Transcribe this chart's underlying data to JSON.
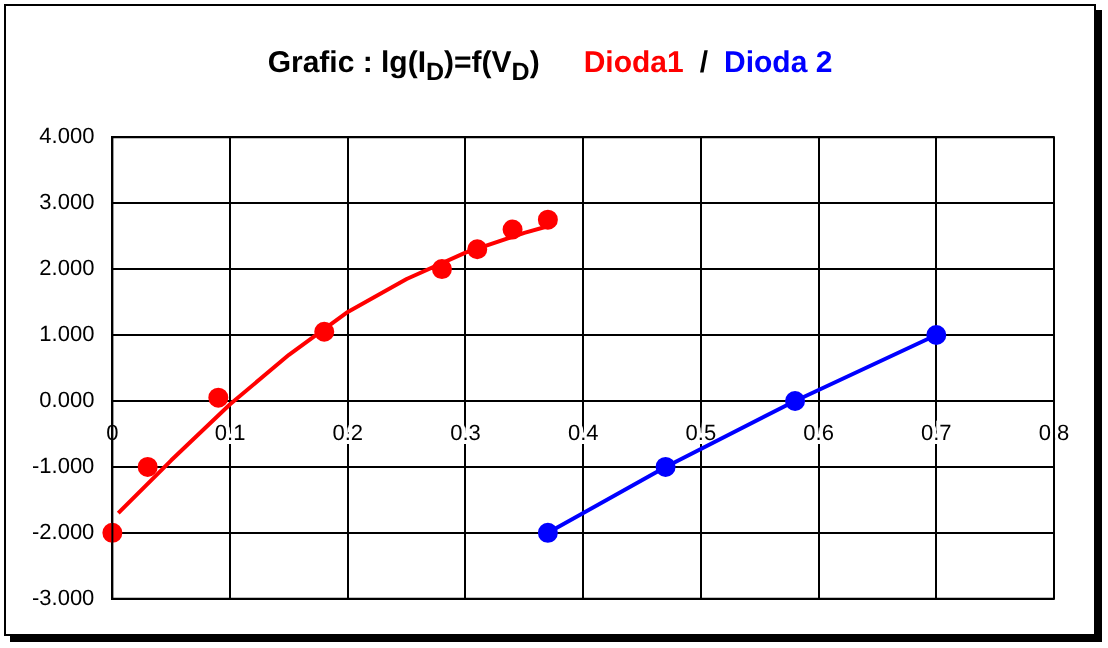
{
  "chart_data": {
    "type": "scatter",
    "title": "Grafic : lg(I$_{D}$)=f(V$_{D}$)",
    "annotations": [
      "/"
    ],
    "xlim": [
      0,
      0.8
    ],
    "xticks": [
      0,
      0.1,
      0.2,
      0.3,
      0.4,
      0.5,
      0.6,
      0.7,
      0.8
    ],
    "ylim": [
      -3,
      4
    ],
    "yticks": [
      {
        "value": -3,
        "label": "-3.000"
      },
      {
        "value": -2,
        "label": "-2.000"
      },
      {
        "value": -1,
        "label": "-1.000"
      },
      {
        "value": 0,
        "label": "0.000"
      },
      {
        "value": 1,
        "label": "1.000"
      },
      {
        "value": 2,
        "label": "2.000"
      },
      {
        "value": 3,
        "label": "3.000"
      },
      {
        "value": 4,
        "label": "4.000"
      }
    ],
    "grid": true,
    "legend": "top",
    "marker": "circle",
    "series": [
      {
        "name": "Dioda1",
        "color": "#ff0000",
        "x": [
          0.0,
          0.03,
          0.09,
          0.18,
          0.28,
          0.31,
          0.34,
          0.37
        ],
        "values": [
          -2.0,
          -1.0,
          0.05,
          1.05,
          2.0,
          2.3,
          2.6,
          2.75
        ]
      },
      {
        "color": "#ff0000",
        "type": "line",
        "marker": "none",
        "x": [
          0.005,
          0.05,
          0.1,
          0.15,
          0.2,
          0.25,
          0.3,
          0.35,
          0.37
        ],
        "values": [
          -1.7,
          -0.9,
          -0.05,
          0.7,
          1.35,
          1.85,
          2.25,
          2.55,
          2.65
        ]
      },
      {
        "name": "Dioda 2",
        "color": "#0000ff",
        "type": "line",
        "x": [
          0.37,
          0.47,
          0.58,
          0.7
        ],
        "values": [
          -2.0,
          -1.0,
          0.0,
          1.0
        ]
      }
    ]
  }
}
